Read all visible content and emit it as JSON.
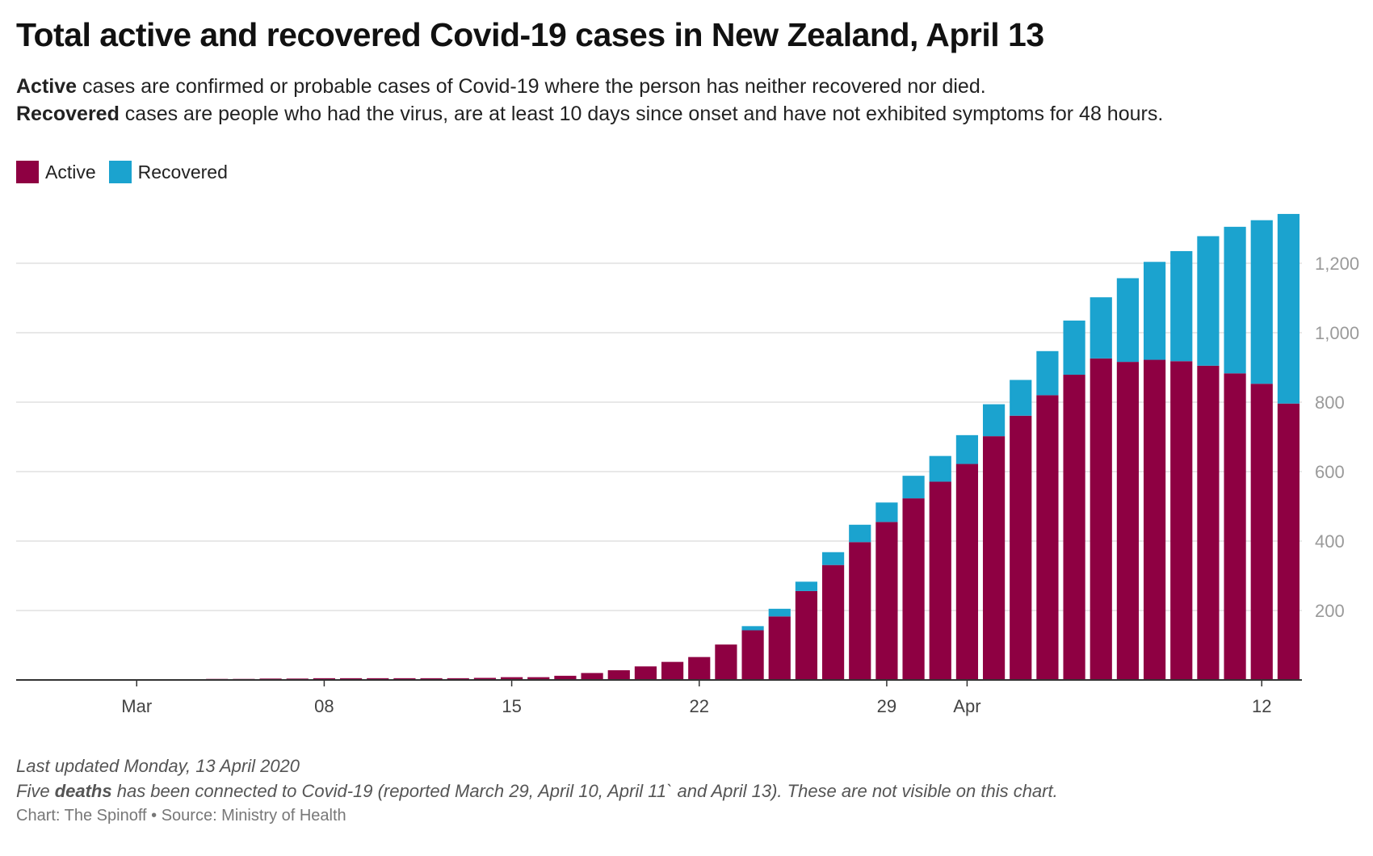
{
  "header": {
    "title": "Total active and recovered Covid-19 cases in New Zealand, April 13",
    "desc_line1": {
      "bold": "Active",
      "rest": " cases are confirmed or probable cases of Covid-19 where the person has neither recovered nor died."
    },
    "desc_line2": {
      "bold": "Recovered",
      "rest": " cases are people who had the virus, are at least 10 days since onset and have not exhibited symptoms for 48 hours."
    }
  },
  "legend": [
    {
      "label": "Active",
      "color": "#8e0042"
    },
    {
      "label": "Recovered",
      "color": "#1ba3cf"
    }
  ],
  "footer": {
    "updated": "Last updated Monday, 13 April 2020",
    "note_prefix": "Five ",
    "note_bold": "deaths",
    "note_rest": " has been connected to Covid-19 (reported March 29, April 10, April 11` and April 13). These are not visible on this chart.",
    "credit": "Chart: The Spinoff • Source: Ministry of Health"
  },
  "chart_data": {
    "type": "bar",
    "stacked": true,
    "x_start": "2020-02-26",
    "x_end": "2020-04-13",
    "x_ticks": [
      {
        "date": "2020-03-01",
        "label": "Mar"
      },
      {
        "date": "2020-03-08",
        "label": "08"
      },
      {
        "date": "2020-03-15",
        "label": "15"
      },
      {
        "date": "2020-03-22",
        "label": "22"
      },
      {
        "date": "2020-03-29",
        "label": "29"
      },
      {
        "date": "2020-04-01",
        "label": "Apr"
      },
      {
        "date": "2020-04-12",
        "label": "12"
      }
    ],
    "y_ticks": [
      200,
      400,
      600,
      800,
      1000,
      1200
    ],
    "y_tick_labels": [
      "200",
      "400",
      "600",
      "800",
      "1,000",
      "1,200"
    ],
    "ylim": [
      0,
      1400
    ],
    "y_axis_side": "right",
    "grid": true,
    "legend_position": "top-left",
    "series": [
      {
        "name": "Active",
        "color": "#8e0042",
        "points": [
          [
            "2020-02-26",
            0
          ],
          [
            "2020-02-27",
            0
          ],
          [
            "2020-02-28",
            1
          ],
          [
            "2020-02-29",
            1
          ],
          [
            "2020-03-01",
            1
          ],
          [
            "2020-03-02",
            1
          ],
          [
            "2020-03-03",
            1
          ],
          [
            "2020-03-04",
            3
          ],
          [
            "2020-03-05",
            3
          ],
          [
            "2020-03-06",
            4
          ],
          [
            "2020-03-07",
            4
          ],
          [
            "2020-03-08",
            5
          ],
          [
            "2020-03-09",
            5
          ],
          [
            "2020-03-10",
            5
          ],
          [
            "2020-03-11",
            5
          ],
          [
            "2020-03-12",
            5
          ],
          [
            "2020-03-13",
            5
          ],
          [
            "2020-03-14",
            6
          ],
          [
            "2020-03-15",
            8
          ],
          [
            "2020-03-16",
            8
          ],
          [
            "2020-03-17",
            12
          ],
          [
            "2020-03-18",
            20
          ],
          [
            "2020-03-19",
            28
          ],
          [
            "2020-03-20",
            39
          ],
          [
            "2020-03-21",
            52
          ],
          [
            "2020-03-22",
            66
          ],
          [
            "2020-03-23",
            102
          ],
          [
            "2020-03-24",
            143
          ],
          [
            "2020-03-25",
            183
          ],
          [
            "2020-03-26",
            256
          ],
          [
            "2020-03-27",
            331
          ],
          [
            "2020-03-28",
            397
          ],
          [
            "2020-03-29",
            455
          ],
          [
            "2020-03-30",
            523
          ],
          [
            "2020-03-31",
            571
          ],
          [
            "2020-04-01",
            622
          ],
          [
            "2020-04-02",
            702
          ],
          [
            "2020-04-03",
            761
          ],
          [
            "2020-04-04",
            820
          ],
          [
            "2020-04-05",
            879
          ],
          [
            "2020-04-06",
            926
          ],
          [
            "2020-04-07",
            916
          ],
          [
            "2020-04-08",
            922
          ],
          [
            "2020-04-09",
            918
          ],
          [
            "2020-04-10",
            905
          ],
          [
            "2020-04-11",
            883
          ],
          [
            "2020-04-12",
            853
          ],
          [
            "2020-04-13",
            796
          ]
        ]
      },
      {
        "name": "Recovered",
        "color": "#1ba3cf",
        "points": [
          [
            "2020-02-26",
            0
          ],
          [
            "2020-02-27",
            0
          ],
          [
            "2020-02-28",
            0
          ],
          [
            "2020-02-29",
            0
          ],
          [
            "2020-03-01",
            0
          ],
          [
            "2020-03-02",
            0
          ],
          [
            "2020-03-03",
            0
          ],
          [
            "2020-03-04",
            0
          ],
          [
            "2020-03-05",
            0
          ],
          [
            "2020-03-06",
            0
          ],
          [
            "2020-03-07",
            0
          ],
          [
            "2020-03-08",
            0
          ],
          [
            "2020-03-09",
            0
          ],
          [
            "2020-03-10",
            0
          ],
          [
            "2020-03-11",
            0
          ],
          [
            "2020-03-12",
            0
          ],
          [
            "2020-03-13",
            0
          ],
          [
            "2020-03-14",
            0
          ],
          [
            "2020-03-15",
            0
          ],
          [
            "2020-03-16",
            0
          ],
          [
            "2020-03-17",
            0
          ],
          [
            "2020-03-18",
            0
          ],
          [
            "2020-03-19",
            0
          ],
          [
            "2020-03-20",
            0
          ],
          [
            "2020-03-21",
            0
          ],
          [
            "2020-03-22",
            0
          ],
          [
            "2020-03-23",
            0
          ],
          [
            "2020-03-24",
            12
          ],
          [
            "2020-03-25",
            22
          ],
          [
            "2020-03-26",
            27
          ],
          [
            "2020-03-27",
            37
          ],
          [
            "2020-03-28",
            50
          ],
          [
            "2020-03-29",
            56
          ],
          [
            "2020-03-30",
            65
          ],
          [
            "2020-03-31",
            74
          ],
          [
            "2020-04-01",
            83
          ],
          [
            "2020-04-02",
            92
          ],
          [
            "2020-04-03",
            103
          ],
          [
            "2020-04-04",
            127
          ],
          [
            "2020-04-05",
            156
          ],
          [
            "2020-04-06",
            176
          ],
          [
            "2020-04-07",
            241
          ],
          [
            "2020-04-08",
            282
          ],
          [
            "2020-04-09",
            317
          ],
          [
            "2020-04-10",
            373
          ],
          [
            "2020-04-11",
            422
          ],
          [
            "2020-04-12",
            471
          ],
          [
            "2020-04-13",
            546
          ]
        ]
      }
    ]
  }
}
